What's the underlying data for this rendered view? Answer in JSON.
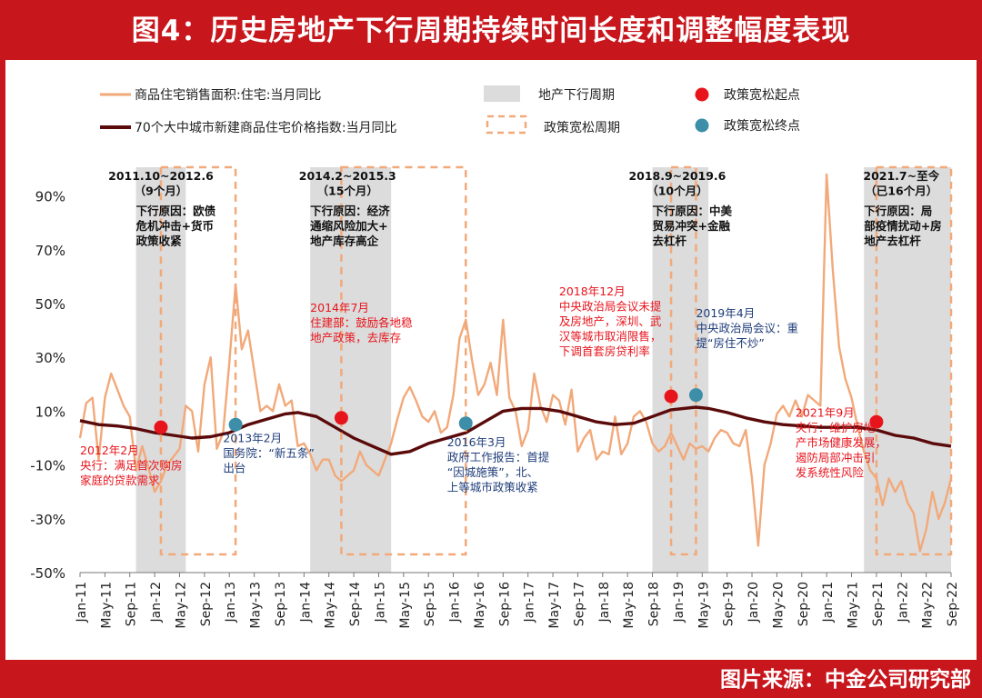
{
  "header": {
    "title": "图4：历史房地产下行周期持续时间长度和调整幅度表现"
  },
  "footer": {
    "source": "图片来源：中金公司研究部"
  },
  "colors": {
    "frame": "#c8161d",
    "sales": "#f2a97a",
    "price": "#5a0a0a",
    "downturn_shade": "#dcdcdc",
    "easing_box": "#f2a97a",
    "easing_start": "#e8141c",
    "easing_end": "#3d8ea8",
    "annotation_black": "#111111",
    "annotation_red": "#e8141c",
    "annotation_blue": "#1f3d7a"
  },
  "chart_data": {
    "type": "line",
    "title": "",
    "xlabel": "",
    "ylabel": "",
    "x_start": "2011-01",
    "x_end": "2022-09",
    "ylim": [
      -50,
      100
    ],
    "y_ticks": [
      {
        "value": 90,
        "label": "90%"
      },
      {
        "value": 70,
        "label": "70%"
      },
      {
        "value": 50,
        "label": "50%"
      },
      {
        "value": 30,
        "label": "30%"
      },
      {
        "value": 10,
        "label": "10%"
      },
      {
        "value": -10,
        "label": "-10%"
      },
      {
        "value": -30,
        "label": "-30%"
      },
      {
        "value": -50,
        "label": "-50%"
      }
    ],
    "x_tick_labels": [
      "Jan-11",
      "May-11",
      "Sep-11",
      "Jan-12",
      "May-12",
      "Sep-12",
      "Jan-13",
      "May-13",
      "Sep-13",
      "Jan-14",
      "May-14",
      "Sep-14",
      "Jan-15",
      "May-15",
      "Sep-15",
      "Jan-16",
      "May-16",
      "Sep-16",
      "Jan-17",
      "May-17",
      "Sep-17",
      "Jan-18",
      "May-18",
      "Sep-18",
      "Jan-19",
      "May-19",
      "Sep-19",
      "Jan-20",
      "May-20",
      "Sep-20",
      "Jan-21",
      "May-21",
      "Sep-21",
      "Jan-22",
      "May-22",
      "Sep-22"
    ],
    "legend": {
      "sales": "商品住宅销售面积:住宅:当月同比",
      "price": "70个大中城市新建商品住宅价格指数:当月同比",
      "downturn": "地产下行周期",
      "easing": "政策宽松周期",
      "start": "政策宽松起点",
      "end": "政策宽松终点"
    },
    "series": [
      {
        "key": "sales",
        "name": "商品住宅销售面积:住宅:当月同比",
        "points": [
          [
            "2011-01",
            0
          ],
          [
            "2011-02",
            13
          ],
          [
            "2011-03",
            15
          ],
          [
            "2011-04",
            -8
          ],
          [
            "2011-05",
            15
          ],
          [
            "2011-06",
            24
          ],
          [
            "2011-07",
            18
          ],
          [
            "2011-08",
            12
          ],
          [
            "2011-09",
            8
          ],
          [
            "2011-10",
            -12
          ],
          [
            "2011-11",
            -3
          ],
          [
            "2011-12",
            -11
          ],
          [
            "2012-01",
            -20
          ],
          [
            "2012-02",
            -16
          ],
          [
            "2012-03",
            -10
          ],
          [
            "2012-04",
            -7
          ],
          [
            "2012-05",
            -4
          ],
          [
            "2012-06",
            12
          ],
          [
            "2012-07",
            10
          ],
          [
            "2012-08",
            -5
          ],
          [
            "2012-09",
            20
          ],
          [
            "2012-10",
            30
          ],
          [
            "2012-11",
            -4
          ],
          [
            "2012-12",
            2
          ],
          [
            "2013-01",
            28
          ],
          [
            "2013-02",
            57
          ],
          [
            "2013-03",
            33
          ],
          [
            "2013-04",
            40
          ],
          [
            "2013-05",
            25
          ],
          [
            "2013-06",
            10
          ],
          [
            "2013-07",
            12
          ],
          [
            "2013-08",
            10
          ],
          [
            "2013-09",
            20
          ],
          [
            "2013-10",
            12
          ],
          [
            "2013-11",
            14
          ],
          [
            "2013-12",
            -3
          ],
          [
            "2014-01",
            -2
          ],
          [
            "2014-02",
            -6
          ],
          [
            "2014-03",
            -12
          ],
          [
            "2014-04",
            -8
          ],
          [
            "2014-05",
            -8
          ],
          [
            "2014-06",
            -14
          ],
          [
            "2014-07",
            -16
          ],
          [
            "2014-08",
            -14
          ],
          [
            "2014-09",
            -12
          ],
          [
            "2014-10",
            -5
          ],
          [
            "2014-11",
            -10
          ],
          [
            "2014-12",
            -12
          ],
          [
            "2015-01",
            -14
          ],
          [
            "2015-02",
            -8
          ],
          [
            "2015-03",
            -2
          ],
          [
            "2015-04",
            7
          ],
          [
            "2015-05",
            15
          ],
          [
            "2015-06",
            19
          ],
          [
            "2015-07",
            14
          ],
          [
            "2015-08",
            8
          ],
          [
            "2015-09",
            6
          ],
          [
            "2015-10",
            10
          ],
          [
            "2015-11",
            2
          ],
          [
            "2015-12",
            4
          ],
          [
            "2016-01",
            16
          ],
          [
            "2016-02",
            37
          ],
          [
            "2016-03",
            44
          ],
          [
            "2016-04",
            29
          ],
          [
            "2016-05",
            16
          ],
          [
            "2016-06",
            20
          ],
          [
            "2016-07",
            28
          ],
          [
            "2016-08",
            16
          ],
          [
            "2016-09",
            44
          ],
          [
            "2016-10",
            15
          ],
          [
            "2016-11",
            10
          ],
          [
            "2016-12",
            -3
          ],
          [
            "2017-01",
            3
          ],
          [
            "2017-02",
            24
          ],
          [
            "2017-03",
            12
          ],
          [
            "2017-04",
            6
          ],
          [
            "2017-05",
            16
          ],
          [
            "2017-06",
            14
          ],
          [
            "2017-07",
            5
          ],
          [
            "2017-08",
            18
          ],
          [
            "2017-09",
            -5
          ],
          [
            "2017-10",
            0
          ],
          [
            "2017-11",
            3
          ],
          [
            "2017-12",
            -8
          ],
          [
            "2018-01",
            -5
          ],
          [
            "2018-02",
            -6
          ],
          [
            "2018-03",
            8
          ],
          [
            "2018-04",
            -6
          ],
          [
            "2018-05",
            -2
          ],
          [
            "2018-06",
            8
          ],
          [
            "2018-07",
            10
          ],
          [
            "2018-08",
            6
          ],
          [
            "2018-09",
            -2
          ],
          [
            "2018-10",
            -5
          ],
          [
            "2018-11",
            -3
          ],
          [
            "2018-12",
            2
          ],
          [
            "2019-01",
            -3
          ],
          [
            "2019-02",
            -8
          ],
          [
            "2019-03",
            -2
          ],
          [
            "2019-04",
            -4
          ],
          [
            "2019-05",
            -3
          ],
          [
            "2019-06",
            -5
          ],
          [
            "2019-07",
            0
          ],
          [
            "2019-08",
            3
          ],
          [
            "2019-09",
            2
          ],
          [
            "2019-10",
            -2
          ],
          [
            "2019-11",
            -3
          ],
          [
            "2019-12",
            3
          ],
          [
            "2020-01",
            -15
          ],
          [
            "2020-02",
            -40
          ],
          [
            "2020-03",
            -10
          ],
          [
            "2020-04",
            -2
          ],
          [
            "2020-05",
            9
          ],
          [
            "2020-06",
            12
          ],
          [
            "2020-07",
            8
          ],
          [
            "2020-08",
            14
          ],
          [
            "2020-09",
            8
          ],
          [
            "2020-10",
            16
          ],
          [
            "2020-11",
            14
          ],
          [
            "2020-12",
            12
          ],
          [
            "2021-01",
            98
          ],
          [
            "2021-02",
            62
          ],
          [
            "2021-03",
            34
          ],
          [
            "2021-04",
            22
          ],
          [
            "2021-05",
            15
          ],
          [
            "2021-06",
            4
          ],
          [
            "2021-07",
            -5
          ],
          [
            "2021-08",
            -12
          ],
          [
            "2021-09",
            -15
          ],
          [
            "2021-10",
            -25
          ],
          [
            "2021-11",
            -15
          ],
          [
            "2021-12",
            -20
          ],
          [
            "2022-01",
            -16
          ],
          [
            "2022-02",
            -24
          ],
          [
            "2022-03",
            -28
          ],
          [
            "2022-04",
            -42
          ],
          [
            "2022-05",
            -34
          ],
          [
            "2022-06",
            -20
          ],
          [
            "2022-07",
            -30
          ],
          [
            "2022-08",
            -24
          ],
          [
            "2022-09",
            -15
          ]
        ]
      },
      {
        "key": "price",
        "name": "70个大中城市新建商品住宅价格指数:当月同比",
        "points": [
          [
            "2011-01",
            6.5
          ],
          [
            "2011-04",
            5
          ],
          [
            "2011-07",
            4.5
          ],
          [
            "2011-10",
            3.5
          ],
          [
            "2012-01",
            2
          ],
          [
            "2012-04",
            1
          ],
          [
            "2012-07",
            0
          ],
          [
            "2012-10",
            0.5
          ],
          [
            "2013-01",
            2
          ],
          [
            "2013-04",
            5
          ],
          [
            "2013-07",
            7
          ],
          [
            "2013-10",
            9
          ],
          [
            "2013-12",
            9.5
          ],
          [
            "2014-03",
            8
          ],
          [
            "2014-06",
            4
          ],
          [
            "2014-09",
            0
          ],
          [
            "2014-12",
            -3
          ],
          [
            "2015-03",
            -6
          ],
          [
            "2015-06",
            -5
          ],
          [
            "2015-09",
            -2
          ],
          [
            "2015-12",
            0
          ],
          [
            "2016-03",
            2
          ],
          [
            "2016-06",
            6
          ],
          [
            "2016-09",
            10
          ],
          [
            "2016-12",
            11
          ],
          [
            "2017-03",
            11
          ],
          [
            "2017-06",
            10
          ],
          [
            "2017-09",
            8
          ],
          [
            "2017-12",
            6
          ],
          [
            "2018-03",
            5
          ],
          [
            "2018-06",
            5.5
          ],
          [
            "2018-09",
            8
          ],
          [
            "2018-12",
            10.5
          ],
          [
            "2019-04",
            11.5
          ],
          [
            "2019-06",
            11
          ],
          [
            "2019-09",
            9.5
          ],
          [
            "2019-12",
            7.5
          ],
          [
            "2020-03",
            6
          ],
          [
            "2020-06",
            5
          ],
          [
            "2020-09",
            4.5
          ],
          [
            "2020-12",
            4
          ],
          [
            "2021-03",
            4
          ],
          [
            "2021-06",
            4
          ],
          [
            "2021-09",
            3
          ],
          [
            "2021-12",
            1
          ],
          [
            "2022-03",
            0
          ],
          [
            "2022-06",
            -2
          ],
          [
            "2022-09",
            -3
          ]
        ]
      }
    ],
    "downturns": [
      [
        "2011-10",
        "2012-06"
      ],
      [
        "2014-02",
        "2015-03"
      ],
      [
        "2018-09",
        "2019-06"
      ],
      [
        "2021-07",
        "2022-09"
      ]
    ],
    "easing_periods": [
      [
        "2012-02",
        "2013-02"
      ],
      [
        "2014-07",
        "2016-03"
      ],
      [
        "2018-12",
        "2019-04"
      ],
      [
        "2021-09",
        "2022-09"
      ]
    ],
    "easing_start_points": [
      [
        "2012-02",
        4
      ],
      [
        "2014-07",
        7.5
      ],
      [
        "2018-12",
        15.5
      ],
      [
        "2021-09",
        6
      ]
    ],
    "easing_end_points": [
      [
        "2013-02",
        5
      ],
      [
        "2016-03",
        5.5
      ],
      [
        "2019-04",
        16
      ]
    ],
    "annotations": [
      {
        "color": "black",
        "x": "2011-11",
        "y_top": 96,
        "anchor": "start",
        "lines": [
          "2011.10~2012.6",
          "（9个月）"
        ],
        "centered": true,
        "cx": "2012-02"
      },
      {
        "color": "black",
        "x": "2011-10",
        "y_top": 83,
        "anchor": "start",
        "lines": [
          "下行原因：欧债",
          "危机冲击+货币",
          "政策收紧"
        ]
      },
      {
        "color": "black",
        "x": "2014-03",
        "y_top": 96,
        "lines": [
          "2014.2~2015.3",
          "（15个月）"
        ],
        "centered": true,
        "cx": "2014-08"
      },
      {
        "color": "black",
        "x": "2014-02",
        "y_top": 83,
        "lines": [
          "下行原因：经济",
          "通缩风险加大+",
          "地产库存高企"
        ]
      },
      {
        "color": "black",
        "x": "2018-09",
        "y_top": 96,
        "lines": [
          "2018.9~2019.6",
          "（10个月）"
        ],
        "centered": true,
        "cx": "2019-01"
      },
      {
        "color": "black",
        "x": "2018-09",
        "y_top": 83,
        "lines": [
          "下行原因：中美",
          "贸易冲突+金融",
          "去杠杆"
        ]
      },
      {
        "color": "black",
        "x": "2021-08",
        "y_top": 96,
        "lines": [
          "2021.7~至今",
          "（已16个月）"
        ],
        "centered": true,
        "cx": "2022-01"
      },
      {
        "color": "black",
        "x": "2021-07",
        "y_top": 83,
        "lines": [
          "下行原因：局",
          "部疫情扰动+房",
          "地产去杠杆"
        ]
      },
      {
        "color": "red",
        "x": "2014-02",
        "y_top": 47,
        "lines": [
          "2014年7月",
          "住建部：鼓励各地稳",
          "地产政策，去库存"
        ]
      },
      {
        "color": "red",
        "x": "2017-06",
        "y_top": 53,
        "lines": [
          "2018年12月",
          "中央政治局会议未提",
          "及房地产，深圳、武",
          "汉等城市取消限售，",
          "下调首套房贷利率"
        ]
      },
      {
        "color": "blue",
        "x": "2019-04",
        "y_top": 45,
        "lines": [
          "2019年4月",
          "中央政治局会议：重",
          "提“房住不炒”"
        ]
      },
      {
        "color": "red",
        "x": "2011-01",
        "y_top": -6,
        "lines": [
          "2012年2月",
          "央行：满足首次购房",
          "家庭的贷款需求"
        ]
      },
      {
        "color": "blue",
        "x": "2012-12",
        "y_top": -1.5,
        "lines": [
          "2013年2月",
          "国务院：“新五条”",
          "出台"
        ]
      },
      {
        "color": "blue",
        "x": "2015-12",
        "y_top": -3,
        "lines": [
          "2016年3月",
          "政府工作报告：首提",
          "“因城施策”，北、",
          "上等城市政策收紧"
        ]
      },
      {
        "color": "red",
        "x": "2020-08",
        "y_top": 8,
        "lines": [
          "2021年9月",
          "央行：维护房地",
          "产市场健康发展，",
          "遏防局部冲击引",
          "发系统性风险"
        ]
      }
    ]
  }
}
